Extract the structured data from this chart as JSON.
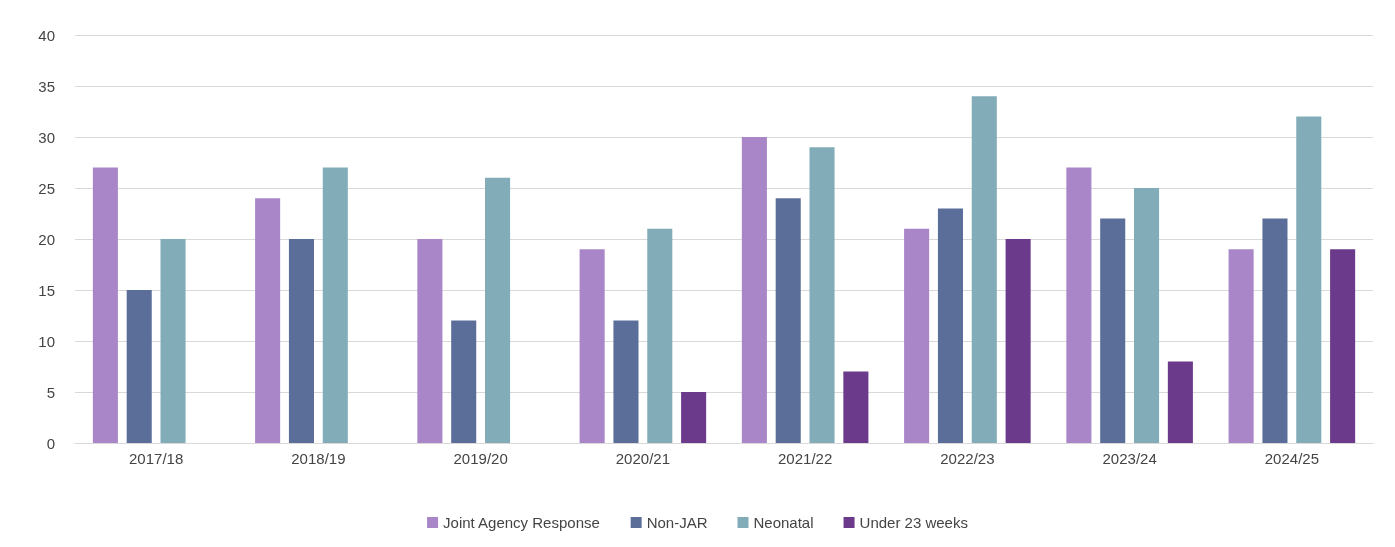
{
  "chart_data": {
    "type": "bar",
    "categories": [
      "2017/18",
      "2018/19",
      "2019/20",
      "2020/21",
      "2021/22",
      "2022/23",
      "2023/24",
      "2024/25"
    ],
    "series": [
      {
        "name": "Joint Agency Response",
        "color": "#a886c8",
        "values": [
          27,
          24,
          20,
          19,
          30,
          21,
          27,
          19
        ]
      },
      {
        "name": "Non-JAR",
        "color": "#5b6e9a",
        "values": [
          15,
          20,
          12,
          12,
          24,
          23,
          22,
          22
        ]
      },
      {
        "name": "Neonatal",
        "color": "#82adb8",
        "values": [
          20,
          27,
          26,
          21,
          29,
          34,
          25,
          32
        ]
      },
      {
        "name": "Under 23 weeks",
        "color": "#6c3a8a",
        "values": [
          null,
          null,
          null,
          5,
          7,
          20,
          8,
          19
        ]
      }
    ],
    "ylim": [
      0,
      40
    ],
    "yticks": [
      0,
      5,
      10,
      15,
      20,
      25,
      30,
      35,
      40
    ],
    "grid": "y",
    "legend": "bottom"
  }
}
